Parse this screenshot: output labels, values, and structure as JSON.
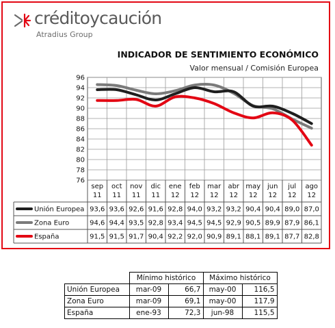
{
  "brand": {
    "name": "créditoycaución",
    "sub": "Atradius Group"
  },
  "colors": {
    "frame": "#e30613",
    "ue": "#1f1f1f",
    "ze": "#7a7a7a",
    "es": "#e30613",
    "grid": "#9a9a9a"
  },
  "chart_data": {
    "type": "line",
    "title": "INDICADOR DE SENTIMIENTO ECONÓMICO",
    "subtitle": "Valor mensual / Comisión Europea",
    "categories": [
      [
        "sep",
        "11"
      ],
      [
        "oct",
        "11"
      ],
      [
        "nov",
        "11"
      ],
      [
        "dic",
        "11"
      ],
      [
        "ene",
        "12"
      ],
      [
        "feb",
        "12"
      ],
      [
        "mar",
        "12"
      ],
      [
        "abr",
        "12"
      ],
      [
        "may",
        "12"
      ],
      [
        "jun",
        "12"
      ],
      [
        "jul",
        "12"
      ],
      [
        "ago",
        "12"
      ]
    ],
    "ylim": [
      76,
      96
    ],
    "yticks": [
      76,
      78,
      80,
      82,
      84,
      86,
      88,
      90,
      92,
      94,
      96
    ],
    "grid": true,
    "series": [
      {
        "name": "Unión Europea",
        "color": "#1f1f1f",
        "labels": [
          "93,6",
          "93,6",
          "92,6",
          "91,6",
          "92,8",
          "94,0",
          "93,2",
          "93,2",
          "90,4",
          "90,4",
          "89,0",
          "87,0"
        ],
        "values": [
          93.6,
          93.6,
          92.6,
          91.6,
          92.8,
          94.0,
          93.2,
          93.2,
          90.4,
          90.4,
          89.0,
          87.0
        ]
      },
      {
        "name": "Zona Euro",
        "color": "#7a7a7a",
        "labels": [
          "94,6",
          "94,4",
          "93,5",
          "92,8",
          "93,4",
          "94,5",
          "94,5",
          "92,9",
          "90,5",
          "89,9",
          "87,9",
          "86,1"
        ],
        "values": [
          94.6,
          94.4,
          93.5,
          92.8,
          93.4,
          94.5,
          94.5,
          92.9,
          90.5,
          89.9,
          87.9,
          86.1
        ]
      },
      {
        "name": "España",
        "color": "#e30613",
        "labels": [
          "91,5",
          "91,5",
          "91,7",
          "90,4",
          "92,2",
          "92,0",
          "90,9",
          "89,1",
          "88,1",
          "89,1",
          "87,7",
          "82,8"
        ],
        "values": [
          91.5,
          91.5,
          91.7,
          90.4,
          92.2,
          92.0,
          90.9,
          89.1,
          88.1,
          89.1,
          87.7,
          82.8
        ]
      }
    ]
  },
  "history": {
    "header_min": "Mínimo histórico",
    "header_max": "Máximo histórico",
    "rows": [
      {
        "name": "Unión Europea",
        "min_date": "mar-09",
        "min_val": "66,7",
        "max_date": "may-00",
        "max_val": "116,5"
      },
      {
        "name": "Zona Euro",
        "min_date": "mar-09",
        "min_val": "69,1",
        "max_date": "may-00",
        "max_val": "117,9"
      },
      {
        "name": "España",
        "min_date": "ene-93",
        "min_val": "72,3",
        "max_date": "jun-98",
        "max_val": "115,5"
      }
    ]
  }
}
